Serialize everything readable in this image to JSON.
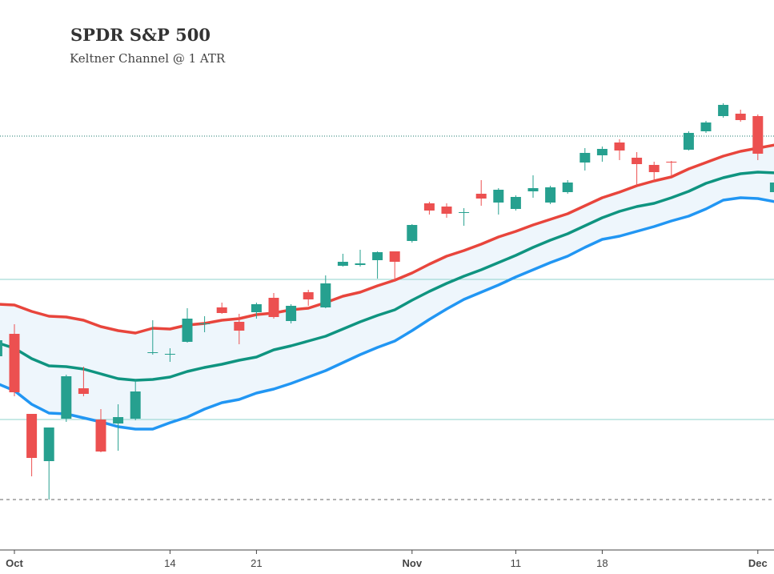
{
  "chart_data": {
    "type": "candlestick",
    "title": "SPDR S&P 500",
    "subtitle": "Keltner Channel @ 1 ATR",
    "categories": [
      null,
      "Oct",
      null,
      null,
      null,
      null,
      null,
      null,
      null,
      null,
      "14",
      null,
      null,
      null,
      null,
      "21",
      null,
      null,
      null,
      null,
      null,
      null,
      null,
      null,
      "Nov",
      null,
      null,
      null,
      null,
      null,
      "11",
      null,
      null,
      null,
      null,
      "18",
      null,
      null,
      null,
      null,
      null,
      null,
      null,
      null,
      "Dec",
      null
    ],
    "open": [
      325.5,
      328.3,
      318.3,
      312.4,
      317.7,
      321.5,
      317.6,
      317.1,
      317.7,
      326,
      325.7,
      327.3,
      329.6,
      331.6,
      329.8,
      331,
      332.8,
      329.9,
      333.5,
      331.6,
      336.8,
      336.9,
      337.5,
      338.6,
      339.9,
      344.6,
      344.2,
      343.5,
      345.8,
      344.7,
      343.9,
      346.1,
      344.7,
      346,
      349.7,
      350.6,
      352.2,
      350.3,
      349.4,
      349.8,
      351.3,
      353.6,
      355.5,
      355.8,
      355.5,
      346
    ],
    "high": [
      328,
      329.5,
      318.3,
      316.6,
      323.2,
      324.2,
      318.9,
      319.5,
      322.5,
      330,
      326.5,
      331.5,
      330.5,
      332.2,
      330.8,
      332.2,
      333.4,
      332,
      333.8,
      335.6,
      338.3,
      338.8,
      338.6,
      338.6,
      342,
      344.8,
      344.6,
      344,
      347.5,
      346.5,
      345.6,
      348.1,
      346.8,
      347.5,
      351.5,
      351.7,
      352.6,
      351,
      349.8,
      349.9,
      353.6,
      354.9,
      357.1,
      356.3,
      355.7,
      347.4
    ],
    "low": [
      325,
      320.5,
      310.5,
      307.6,
      317.3,
      320.5,
      313.5,
      313.7,
      317.5,
      325.7,
      324.8,
      327.2,
      328.5,
      330.8,
      327,
      330.2,
      330.2,
      329.6,
      331.8,
      331.5,
      336.7,
      336.7,
      335.2,
      334.8,
      339.7,
      343.2,
      342.8,
      341.8,
      344.3,
      343.2,
      343.7,
      345.3,
      344.5,
      345.8,
      348.7,
      349.8,
      350,
      346.8,
      347.3,
      348,
      351.2,
      353.4,
      355.3,
      354.8,
      350,
      345.8
    ],
    "close": [
      327.5,
      321,
      312.8,
      316.6,
      323,
      320.8,
      313.6,
      317.9,
      321.1,
      326,
      325.8,
      330.2,
      329.6,
      330.9,
      328.7,
      332,
      330.4,
      331.8,
      332.6,
      334.6,
      337.3,
      337.1,
      338.5,
      337.3,
      341.9,
      343.7,
      343.3,
      343.5,
      345.2,
      346.3,
      345.4,
      346.5,
      346.6,
      347.2,
      350.9,
      351.4,
      351.2,
      349.5,
      348.5,
      349.7,
      353.4,
      354.7,
      356.9,
      355,
      350.8,
      347.2
    ],
    "up_color": "#26a08f",
    "down_color": "#ec5050",
    "lines": [
      {
        "color": "#e8453c",
        "values": [
          332,
          331.9,
          331.1,
          330.5,
          330.4,
          330,
          329.2,
          328.7,
          328.4,
          329,
          328.9,
          329.4,
          329.6,
          330,
          330.2,
          330.7,
          330.9,
          331.3,
          331.5,
          332.2,
          333,
          333.5,
          334.3,
          335,
          335.9,
          337,
          338,
          338.7,
          339.5,
          340.4,
          341.1,
          341.9,
          342.6,
          343.3,
          344.3,
          345.3,
          346,
          346.8,
          347.4,
          347.9,
          348.9,
          349.7,
          350.5,
          351.1,
          351.5,
          351.9
        ]
      },
      {
        "color": "#0f9480",
        "values": [
          327.2,
          326.5,
          325.2,
          324.3,
          324.2,
          323.9,
          323.3,
          322.7,
          322.5,
          322.6,
          322.9,
          323.6,
          324.1,
          324.5,
          325,
          325.4,
          326.3,
          326.8,
          327.4,
          328,
          328.9,
          329.8,
          330.6,
          331.3,
          332.5,
          333.6,
          334.6,
          335.5,
          336.3,
          337.2,
          338.1,
          339.1,
          340,
          340.8,
          341.8,
          342.8,
          343.6,
          344.2,
          344.6,
          345.3,
          346.1,
          347.1,
          347.8,
          348.3,
          348.5,
          348.4
        ]
      },
      {
        "color": "#2196f3",
        "values": [
          322.1,
          321.2,
          319.5,
          318.4,
          318.3,
          317.8,
          317.3,
          316.7,
          316.4,
          316.4,
          317.2,
          317.9,
          318.9,
          319.7,
          320.1,
          320.9,
          321.4,
          322.1,
          322.9,
          323.7,
          324.7,
          325.7,
          326.6,
          327.4,
          328.7,
          330.1,
          331.4,
          332.6,
          333.5,
          334.4,
          335.4,
          336.3,
          337.2,
          338,
          339.1,
          340.1,
          340.5,
          341.1,
          341.7,
          342.4,
          343,
          343.9,
          345,
          345.3,
          345.2,
          344.8
        ]
      }
    ],
    "band_color": "#eef6fc",
    "hlines": [
      {
        "value": 353,
        "style": "dotted",
        "color": "#1b7a6c"
      },
      {
        "value": 335.1,
        "style": "solid",
        "color": "#8fd3cc"
      },
      {
        "value": 317.6,
        "style": "solid",
        "color": "#8fd3cc"
      },
      {
        "value": 307.6,
        "style": "dashed",
        "color": "#666666"
      }
    ],
    "ylim": [
      300,
      370
    ]
  }
}
